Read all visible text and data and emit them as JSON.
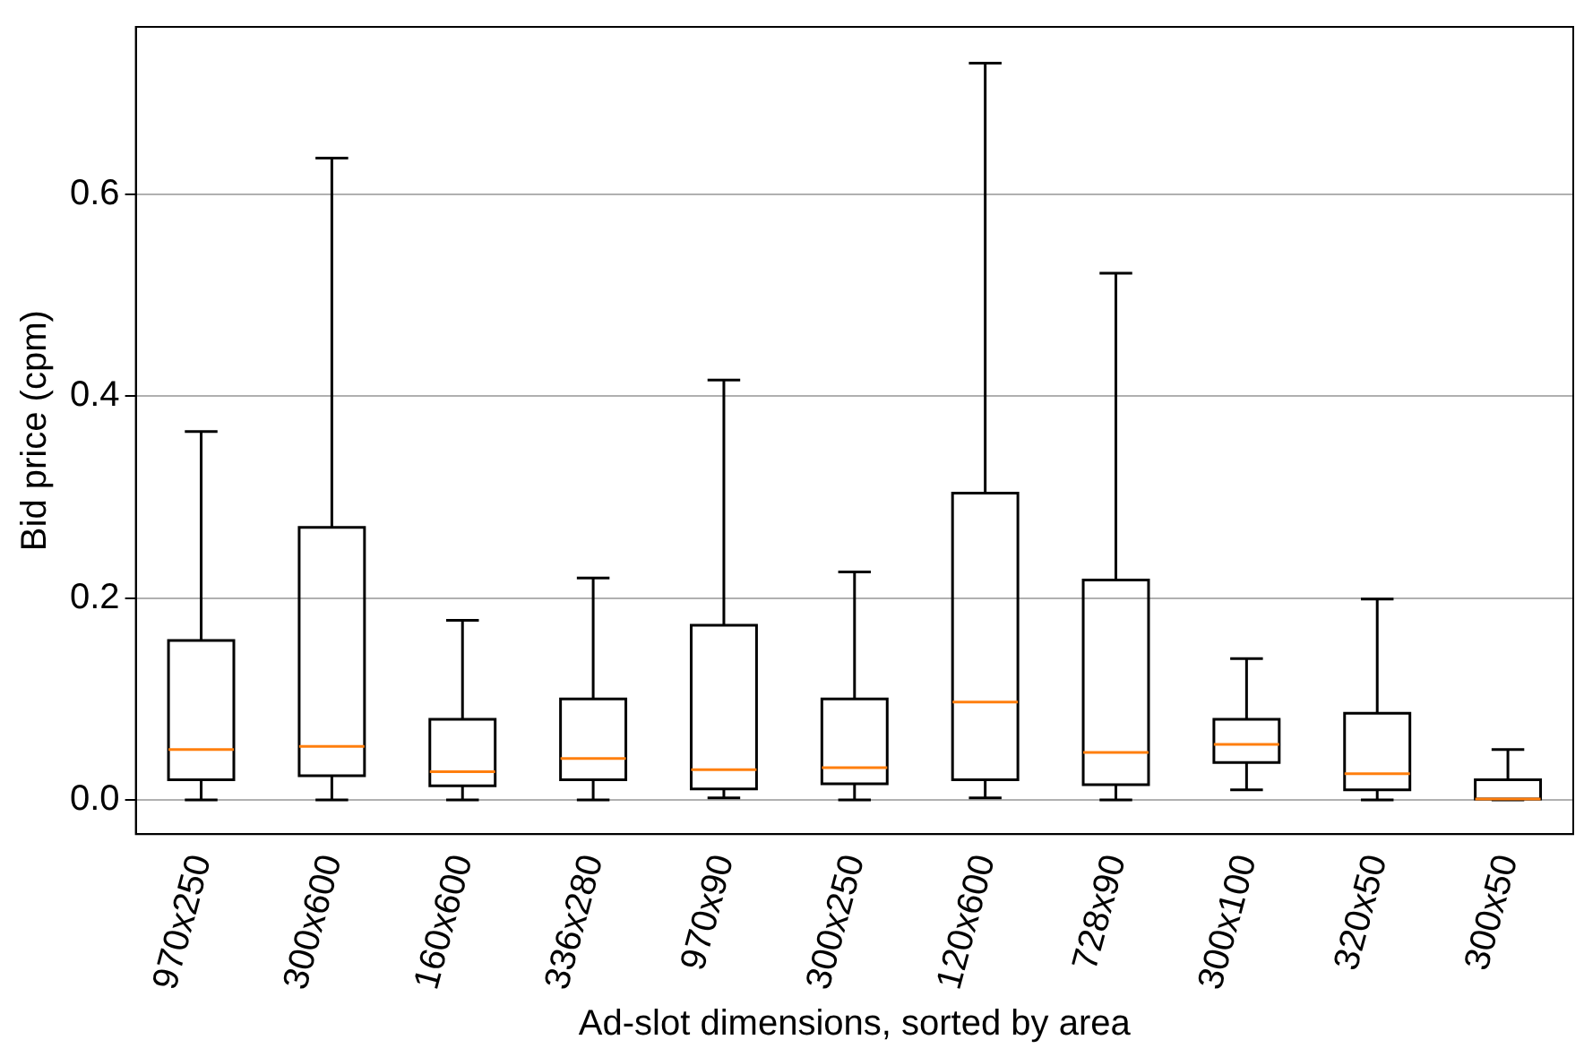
{
  "chart_data": {
    "type": "box",
    "xlabel": "Ad-slot dimensions, sorted by area",
    "ylabel": "Bid price (cpm)",
    "categories": [
      "970x250",
      "300x600",
      "160x600",
      "336x280",
      "970x90",
      "300x250",
      "120x600",
      "728x90",
      "300x100",
      "320x50",
      "300x50"
    ],
    "boxes": [
      {
        "low": 0,
        "q1": 0.02,
        "median": 0.05,
        "q3": 0.158,
        "high": 0.365
      },
      {
        "low": 0,
        "q1": 0.024,
        "median": 0.053,
        "q3": 0.27,
        "high": 0.636
      },
      {
        "low": 0,
        "q1": 0.014,
        "median": 0.028,
        "q3": 0.08,
        "high": 0.178
      },
      {
        "low": 0,
        "q1": 0.02,
        "median": 0.041,
        "q3": 0.1,
        "high": 0.22
      },
      {
        "low": 0.002,
        "q1": 0.011,
        "median": 0.03,
        "q3": 0.173,
        "high": 0.416
      },
      {
        "low": 0,
        "q1": 0.016,
        "median": 0.032,
        "q3": 0.1,
        "high": 0.226
      },
      {
        "low": 0.002,
        "q1": 0.02,
        "median": 0.097,
        "q3": 0.304,
        "high": 0.73
      },
      {
        "low": 0,
        "q1": 0.015,
        "median": 0.047,
        "q3": 0.218,
        "high": 0.522
      },
      {
        "low": 0.01,
        "q1": 0.037,
        "median": 0.055,
        "q3": 0.08,
        "high": 0.14
      },
      {
        "low": 0,
        "q1": 0.01,
        "median": 0.026,
        "q3": 0.086,
        "high": 0.199
      },
      {
        "low": 0,
        "q1": 0.001,
        "median": 0.001,
        "q3": 0.02,
        "high": 0.05
      }
    ],
    "ylim": [
      -0.034,
      0.766
    ],
    "yticks": [
      {
        "value": 0,
        "label": "0.0"
      },
      {
        "value": 0.2,
        "label": "0.2"
      },
      {
        "value": 0.4,
        "label": "0.4"
      },
      {
        "value": 0.6,
        "label": "0.6"
      }
    ],
    "grid": "y",
    "legend": false
  }
}
